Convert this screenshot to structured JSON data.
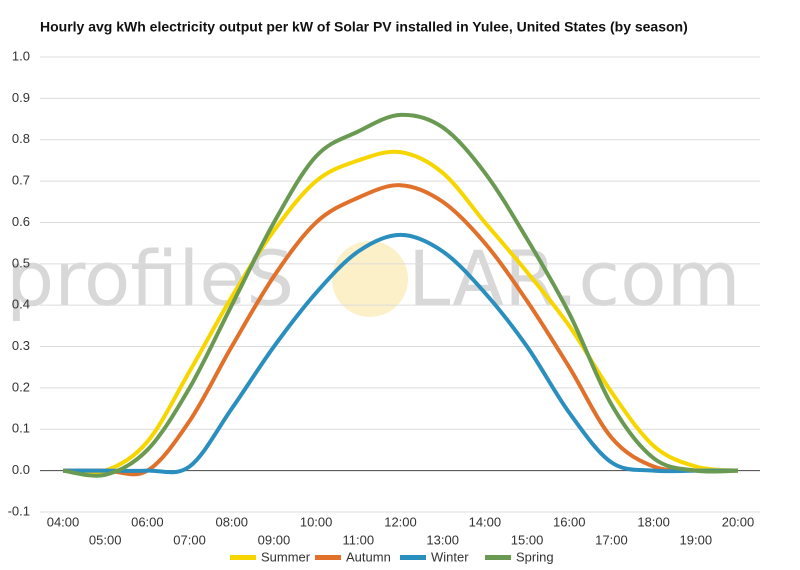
{
  "chart_data": {
    "type": "line",
    "title": "Hourly avg kWh electricity output per kW of Solar PV installed in Yulee, United States (by season)",
    "watermark": [
      "profileS",
      "LAR.com"
    ],
    "categories": [
      "04:00",
      "05:00",
      "06:00",
      "07:00",
      "08:00",
      "09:00",
      "10:00",
      "11:00",
      "12:00",
      "13:00",
      "14:00",
      "15:00",
      "16:00",
      "17:00",
      "18:00",
      "19:00",
      "20:00"
    ],
    "series": [
      {
        "name": "Summer",
        "color": "#f7d600",
        "values": [
          0,
          0,
          0.07,
          0.24,
          0.42,
          0.58,
          0.7,
          0.75,
          0.77,
          0.72,
          0.6,
          0.48,
          0.35,
          0.19,
          0.06,
          0.01,
          0
        ]
      },
      {
        "name": "Autumn",
        "color": "#e0702a",
        "values": [
          0,
          0,
          0,
          0.12,
          0.3,
          0.47,
          0.6,
          0.66,
          0.69,
          0.65,
          0.55,
          0.41,
          0.25,
          0.08,
          0.01,
          0,
          0
        ]
      },
      {
        "name": "Winter",
        "color": "#2a8fbf",
        "values": [
          0,
          0,
          0,
          0.01,
          0.15,
          0.3,
          0.43,
          0.53,
          0.57,
          0.53,
          0.43,
          0.3,
          0.14,
          0.02,
          0,
          0,
          0
        ]
      },
      {
        "name": "Spring",
        "color": "#6a9a52",
        "values": [
          0,
          -0.01,
          0.05,
          0.2,
          0.4,
          0.6,
          0.76,
          0.82,
          0.86,
          0.83,
          0.72,
          0.56,
          0.38,
          0.16,
          0.03,
          0,
          0
        ]
      }
    ],
    "ylim": [
      -0.1,
      1.0
    ],
    "yticks": [
      -0.1,
      {
        "value": 0,
        "label": "0.0"
      },
      0.1,
      0.2,
      0.3,
      0.4,
      0.5,
      0.6,
      0.7,
      0.8,
      0.9,
      {
        "value": 1,
        "label": "1.0"
      }
    ],
    "grid": true
  }
}
